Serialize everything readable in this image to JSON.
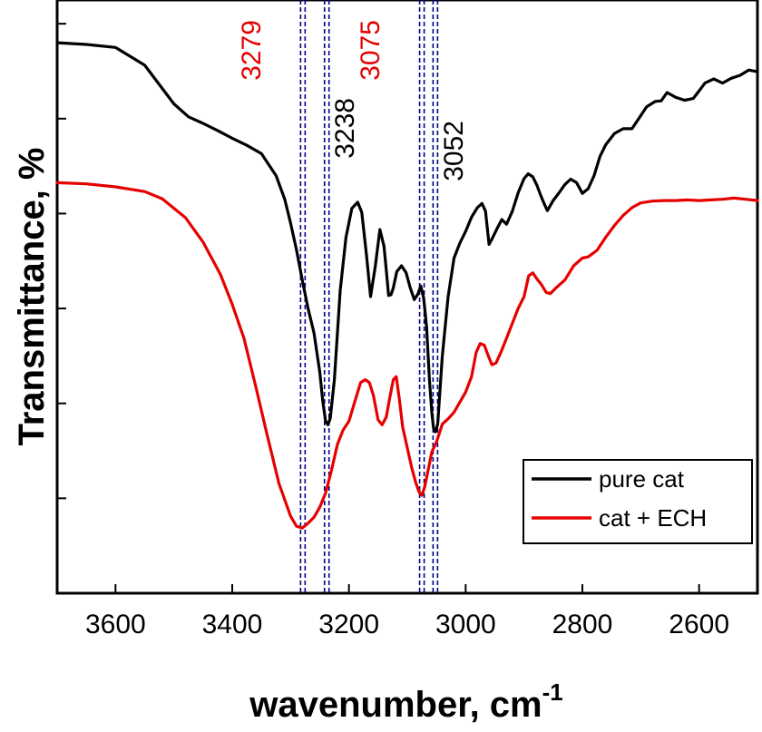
{
  "chart_data": {
    "type": "line",
    "title": "",
    "xlabel": "wavenumber, cm",
    "xlabel_superscript": "-1",
    "ylabel": "Transmittance, %",
    "xlim": [
      3700,
      2500
    ],
    "ylim": [
      0,
      100
    ],
    "x_ticks": [
      3600,
      3400,
      3200,
      3000,
      2800,
      2600
    ],
    "x_tick_labels": [
      "3600",
      "3400",
      "3200",
      "3000",
      "2800",
      "2600"
    ],
    "y_ticks": [
      16,
      32,
      48,
      64,
      80,
      96
    ],
    "y_tick_labels_shown": false,
    "grid": false,
    "legend_position": "bottom-right",
    "colors": {
      "pure": "#000000",
      "ech": "#e60000",
      "ref_lines": "#00008b",
      "ann_red": "#e60000",
      "ann_black": "#000000"
    },
    "series": [
      {
        "name": "pure cat",
        "color": "#000000",
        "x": [
          3700,
          3650,
          3600,
          3550,
          3500,
          3475,
          3450,
          3425,
          3400,
          3375,
          3350,
          3325,
          3310,
          3300,
          3290,
          3280,
          3270,
          3260,
          3250,
          3245,
          3240,
          3236,
          3232,
          3225,
          3215,
          3205,
          3195,
          3185,
          3178,
          3170,
          3163,
          3155,
          3147,
          3140,
          3136,
          3132,
          3128,
          3124,
          3118,
          3110,
          3102,
          3095,
          3088,
          3082,
          3077,
          3072,
          3067,
          3062,
          3058,
          3055,
          3052,
          3048,
          3040,
          3030,
          3020,
          3010,
          3000,
          2990,
          2980,
          2972,
          2966,
          2960,
          2955,
          2945,
          2938,
          2930,
          2920,
          2910,
          2900,
          2893,
          2885,
          2878,
          2872,
          2866,
          2860,
          2850,
          2840,
          2830,
          2820,
          2810,
          2800,
          2790,
          2780,
          2770,
          2760,
          2745,
          2730,
          2715,
          2700,
          2690,
          2675,
          2665,
          2655,
          2640,
          2625,
          2610,
          2600,
          2590,
          2575,
          2560,
          2545,
          2530,
          2515,
          2500
        ],
        "values": [
          92.8,
          92.5,
          92.0,
          89.0,
          82.5,
          80.3,
          79.2,
          78.0,
          76.7,
          75.5,
          74.1,
          70.4,
          66.4,
          62.4,
          57.9,
          52.8,
          48.0,
          43.9,
          37.3,
          32.5,
          29.0,
          28.4,
          29.5,
          36.0,
          51.0,
          60.0,
          64.9,
          65.9,
          64.2,
          57.0,
          50.0,
          55.0,
          61.3,
          58.5,
          54.5,
          50.2,
          50.3,
          51.5,
          54.2,
          55.2,
          54.0,
          51.5,
          49.5,
          50.4,
          51.8,
          49.8,
          45.0,
          36.0,
          30.5,
          27.8,
          27.2,
          28.5,
          40.0,
          50.0,
          56.5,
          59.0,
          61.0,
          63.4,
          65.0,
          65.7,
          64.4,
          58.8,
          59.7,
          61.7,
          63.0,
          62.2,
          64.4,
          67.5,
          69.9,
          70.7,
          70.2,
          68.8,
          67.2,
          65.8,
          64.5,
          66.2,
          67.5,
          68.9,
          69.8,
          69.2,
          67.4,
          68.2,
          70.4,
          73.6,
          75.6,
          77.5,
          78.3,
          78.3,
          80.5,
          82.0,
          82.9,
          83.0,
          84.4,
          83.6,
          83.1,
          83.4,
          84.7,
          86.0,
          86.7,
          86.0,
          86.8,
          87.3,
          88.2,
          87.9
        ]
      },
      {
        "name": "cat + ECH",
        "color": "#e60000",
        "x": [
          3700,
          3650,
          3600,
          3550,
          3520,
          3480,
          3450,
          3420,
          3400,
          3380,
          3360,
          3340,
          3320,
          3300,
          3290,
          3280,
          3270,
          3260,
          3250,
          3240,
          3230,
          3220,
          3210,
          3200,
          3190,
          3180,
          3172,
          3165,
          3158,
          3150,
          3143,
          3136,
          3130,
          3124,
          3119,
          3114,
          3108,
          3100,
          3092,
          3085,
          3080,
          3075,
          3070,
          3065,
          3058,
          3050,
          3040,
          3030,
          3020,
          3010,
          3000,
          2990,
          2982,
          2975,
          2968,
          2962,
          2955,
          2948,
          2940,
          2930,
          2920,
          2910,
          2900,
          2892,
          2885,
          2878,
          2870,
          2862,
          2855,
          2845,
          2830,
          2815,
          2800,
          2790,
          2775,
          2760,
          2745,
          2730,
          2715,
          2700,
          2680,
          2660,
          2640,
          2620,
          2600,
          2580,
          2560,
          2540,
          2520,
          2500
        ],
        "values": [
          69.2,
          69.0,
          68.5,
          67.7,
          66.5,
          63.3,
          59.2,
          53.7,
          48.7,
          43.0,
          35.0,
          26.6,
          18.5,
          13.0,
          11.3,
          11.0,
          11.8,
          12.8,
          14.5,
          16.9,
          20.7,
          25.0,
          27.5,
          29.0,
          32.3,
          35.5,
          36.0,
          35.5,
          33.3,
          29.2,
          28.4,
          29.7,
          33.0,
          36.0,
          36.5,
          33.0,
          28.0,
          24.5,
          21.0,
          18.5,
          17.1,
          16.5,
          18.0,
          20.4,
          23.8,
          25.5,
          28.5,
          29.4,
          30.5,
          32.2,
          33.9,
          36.5,
          40.6,
          42.1,
          41.8,
          40.2,
          38.5,
          38.8,
          40.5,
          43.0,
          45.5,
          48.0,
          50.0,
          53.5,
          54.0,
          53.0,
          52.0,
          50.7,
          50.5,
          51.5,
          52.8,
          55.2,
          56.5,
          56.7,
          57.8,
          60.0,
          62.0,
          63.7,
          65.0,
          65.8,
          66.1,
          66.2,
          66.2,
          66.3,
          66.2,
          66.3,
          66.4,
          66.6,
          66.4,
          66.2
        ]
      }
    ],
    "reference_lines": [
      {
        "x": 3279,
        "label": "3279",
        "color": "red"
      },
      {
        "x": 3238,
        "label": "3238",
        "color": "black"
      },
      {
        "x": 3075,
        "label": "3075",
        "color": "red"
      },
      {
        "x": 3052,
        "label": "3052",
        "color": "black"
      }
    ]
  }
}
